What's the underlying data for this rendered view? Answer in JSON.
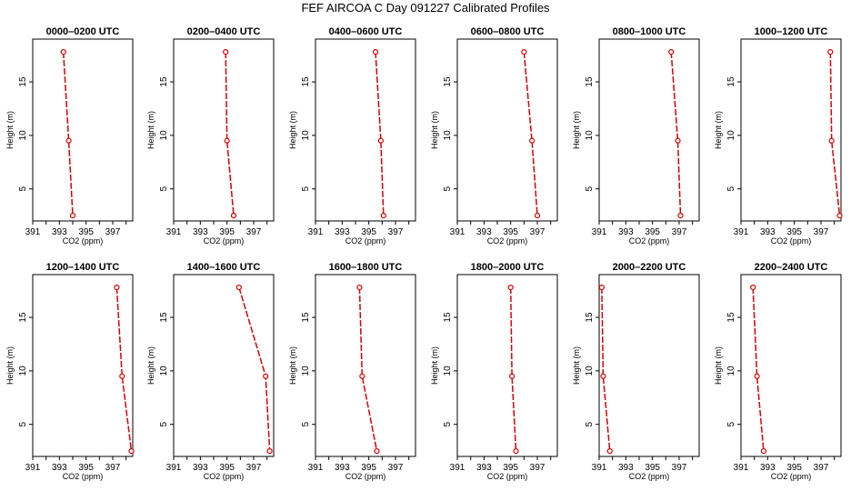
{
  "figure": {
    "title": "FEF AIRCOA C  Day 091227  Calibrated Profiles"
  },
  "style": {
    "line_color": "#dd0000",
    "axis_color": "#000000"
  },
  "chart_data": [
    {
      "type": "line",
      "title": "0000–0200 UTC",
      "xlabel": "CO2 (ppm)",
      "ylabel": "Height (m)",
      "xlim": [
        391,
        398.5
      ],
      "ylim": [
        2,
        19
      ],
      "xticks": [
        391,
        393,
        395,
        397
      ],
      "yticks": [
        5,
        10,
        15
      ],
      "series": [
        {
          "x": [
            393.3,
            393.7,
            394.0
          ],
          "y": [
            17.8,
            9.5,
            2.5
          ]
        }
      ]
    },
    {
      "type": "line",
      "title": "0200–0400 UTC",
      "xlabel": "CO2 (ppm)",
      "ylabel": "Height (m)",
      "xlim": [
        391,
        398.5
      ],
      "ylim": [
        2,
        19
      ],
      "xticks": [
        391,
        393,
        395,
        397
      ],
      "yticks": [
        5,
        10,
        15
      ],
      "series": [
        {
          "x": [
            394.9,
            395.0,
            395.5
          ],
          "y": [
            17.8,
            9.5,
            2.5
          ]
        }
      ]
    },
    {
      "type": "line",
      "title": "0400–0600 UTC",
      "xlabel": "CO2 (ppm)",
      "ylabel": "Height (m)",
      "xlim": [
        391,
        398.5
      ],
      "ylim": [
        2,
        19
      ],
      "xticks": [
        391,
        393,
        395,
        397
      ],
      "yticks": [
        5,
        10,
        15
      ],
      "series": [
        {
          "x": [
            395.5,
            395.9,
            396.1
          ],
          "y": [
            17.8,
            9.5,
            2.5
          ]
        }
      ]
    },
    {
      "type": "line",
      "title": "0600–0800 UTC",
      "xlabel": "CO2 (ppm)",
      "ylabel": "Height (m)",
      "xlim": [
        391,
        398.5
      ],
      "ylim": [
        2,
        19
      ],
      "xticks": [
        391,
        393,
        395,
        397
      ],
      "yticks": [
        5,
        10,
        15
      ],
      "series": [
        {
          "x": [
            396.0,
            396.6,
            397.0
          ],
          "y": [
            17.8,
            9.5,
            2.5
          ]
        }
      ]
    },
    {
      "type": "line",
      "title": "0800–1000 UTC",
      "xlabel": "CO2 (ppm)",
      "ylabel": "Height (m)",
      "xlim": [
        391,
        398.5
      ],
      "ylim": [
        2,
        19
      ],
      "xticks": [
        391,
        393,
        395,
        397
      ],
      "yticks": [
        5,
        10,
        15
      ],
      "series": [
        {
          "x": [
            396.4,
            396.9,
            397.1
          ],
          "y": [
            17.8,
            9.5,
            2.5
          ]
        }
      ]
    },
    {
      "type": "line",
      "title": "1000–1200 UTC",
      "xlabel": "CO2 (ppm)",
      "ylabel": "Height (m)",
      "xlim": [
        391,
        398.5
      ],
      "ylim": [
        2,
        19
      ],
      "xticks": [
        391,
        393,
        395,
        397
      ],
      "yticks": [
        5,
        10,
        15
      ],
      "series": [
        {
          "x": [
            397.7,
            397.8,
            398.4
          ],
          "y": [
            17.8,
            9.5,
            2.5
          ]
        }
      ]
    },
    {
      "type": "line",
      "title": "1200–1400 UTC",
      "xlabel": "CO2 (ppm)",
      "ylabel": "Height (m)",
      "xlim": [
        391,
        398.5
      ],
      "ylim": [
        2,
        19
      ],
      "xticks": [
        391,
        393,
        395,
        397
      ],
      "yticks": [
        5,
        10,
        15
      ],
      "series": [
        {
          "x": [
            397.3,
            397.7,
            398.4
          ],
          "y": [
            17.8,
            9.5,
            2.5
          ]
        }
      ]
    },
    {
      "type": "line",
      "title": "1400–1600 UTC",
      "xlabel": "CO2 (ppm)",
      "ylabel": "Height (m)",
      "xlim": [
        391,
        398.5
      ],
      "ylim": [
        2,
        19
      ],
      "xticks": [
        391,
        393,
        395,
        397
      ],
      "yticks": [
        5,
        10,
        15
      ],
      "series": [
        {
          "x": [
            395.9,
            397.9,
            398.2
          ],
          "y": [
            17.8,
            9.5,
            2.5
          ]
        }
      ]
    },
    {
      "type": "line",
      "title": "1600–1800 UTC",
      "xlabel": "CO2 (ppm)",
      "ylabel": "Height (m)",
      "xlim": [
        391,
        398.5
      ],
      "ylim": [
        2,
        19
      ],
      "xticks": [
        391,
        393,
        395,
        397
      ],
      "yticks": [
        5,
        10,
        15
      ],
      "series": [
        {
          "x": [
            394.3,
            394.5,
            395.6
          ],
          "y": [
            17.8,
            9.5,
            2.5
          ]
        }
      ]
    },
    {
      "type": "line",
      "title": "1800–2000 UTC",
      "xlabel": "CO2 (ppm)",
      "ylabel": "Height (m)",
      "xlim": [
        391,
        398.5
      ],
      "ylim": [
        2,
        19
      ],
      "xticks": [
        391,
        393,
        395,
        397
      ],
      "yticks": [
        5,
        10,
        15
      ],
      "series": [
        {
          "x": [
            395.0,
            395.1,
            395.4
          ],
          "y": [
            17.8,
            9.5,
            2.5
          ]
        }
      ]
    },
    {
      "type": "line",
      "title": "2000–2200 UTC",
      "xlabel": "CO2 (ppm)",
      "ylabel": "Height (m)",
      "xlim": [
        391,
        398.5
      ],
      "ylim": [
        2,
        19
      ],
      "xticks": [
        391,
        393,
        395,
        397
      ],
      "yticks": [
        5,
        10,
        15
      ],
      "series": [
        {
          "x": [
            391.2,
            391.3,
            391.8
          ],
          "y": [
            17.8,
            9.5,
            2.5
          ]
        }
      ]
    },
    {
      "type": "line",
      "title": "2200–2400 UTC",
      "xlabel": "CO2 (ppm)",
      "ylabel": "Height (m)",
      "xlim": [
        391,
        398.5
      ],
      "ylim": [
        2,
        19
      ],
      "xticks": [
        391,
        393,
        395,
        397
      ],
      "yticks": [
        5,
        10,
        15
      ],
      "series": [
        {
          "x": [
            391.9,
            392.2,
            392.7
          ],
          "y": [
            17.8,
            9.5,
            2.5
          ]
        }
      ]
    }
  ]
}
